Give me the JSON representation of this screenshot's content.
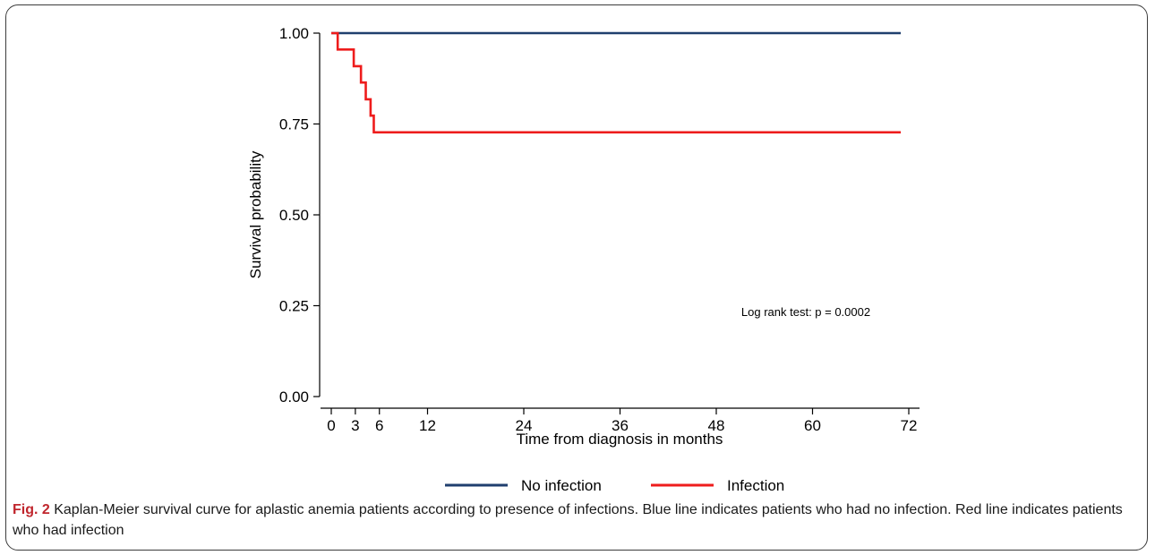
{
  "chart_data": {
    "type": "line",
    "step": true,
    "xlabel": "Time from diagnosis in months",
    "ylabel": "Survival probability",
    "xlim": [
      -1,
      73
    ],
    "ylim": [
      0,
      1
    ],
    "xticks": [
      0,
      3,
      6,
      12,
      24,
      36,
      48,
      60,
      72
    ],
    "xtick_labels": [
      "0",
      "3",
      "6",
      "12",
      "24",
      "36",
      "48",
      "60",
      "72"
    ],
    "yticks": [
      0,
      0.25,
      0.5,
      0.75,
      1.0
    ],
    "ytick_labels": [
      "0.00",
      "0.25",
      "0.50",
      "0.75",
      "1.00"
    ],
    "grid": false,
    "legend_position": "bottom",
    "annotation": "Log rank test: p = 0.0002",
    "series": [
      {
        "name": "No infection",
        "color": "#1f3f6e",
        "points": [
          [
            0,
            1.0
          ],
          [
            71,
            1.0
          ]
        ]
      },
      {
        "name": "Infection",
        "color": "#ee1c1c",
        "points": [
          [
            0,
            1.0
          ],
          [
            0.8,
            0.955
          ],
          [
            2.8,
            0.909
          ],
          [
            3.7,
            0.864
          ],
          [
            4.3,
            0.818
          ],
          [
            4.9,
            0.773
          ],
          [
            5.3,
            0.727
          ],
          [
            71,
            0.727
          ]
        ]
      }
    ]
  },
  "caption": {
    "label": "Fig. 2",
    "text": "Kaplan-Meier survival curve for aplastic anemia patients according to presence of infections. Blue line indicates patients who had no infection. Red line indicates patients who had infection"
  }
}
